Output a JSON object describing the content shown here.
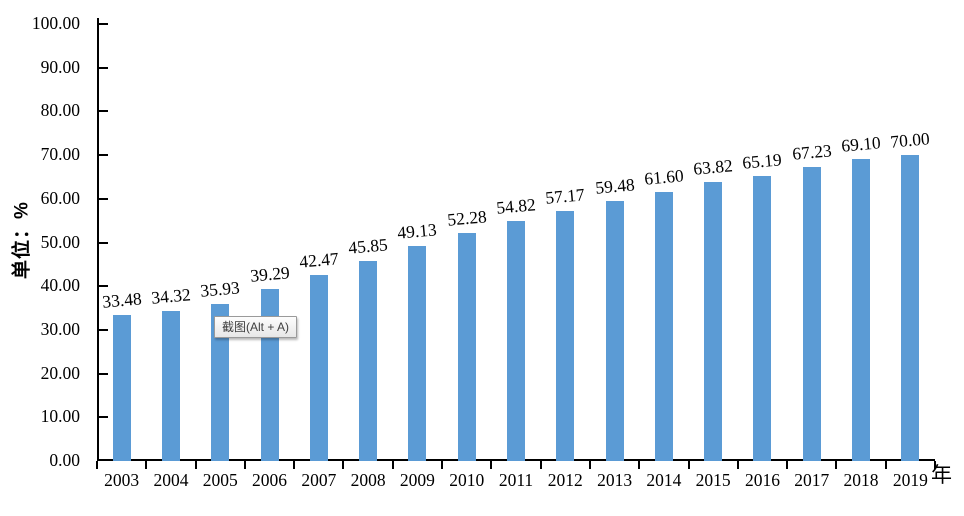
{
  "chart_data": {
    "type": "bar",
    "title": "",
    "categories": [
      "2003",
      "2004",
      "2005",
      "2006",
      "2007",
      "2008",
      "2009",
      "2010",
      "2011",
      "2012",
      "2013",
      "2014",
      "2015",
      "2016",
      "2017",
      "2018",
      "2019"
    ],
    "values": [
      33.48,
      34.32,
      35.93,
      39.29,
      42.47,
      45.85,
      49.13,
      52.28,
      54.82,
      57.17,
      59.48,
      61.6,
      63.82,
      65.19,
      67.23,
      69.1,
      70.0
    ],
    "value_labels": [
      "33.48",
      "34.32",
      "35.93",
      "39.29",
      "42.47",
      "45.85",
      "49.13",
      "52.28",
      "54.82",
      "57.17",
      "59.48",
      "61.60",
      "63.82",
      "65.19",
      "67.23",
      "69.10",
      "70.00"
    ],
    "xlabel": "年",
    "ylabel": "单位：%",
    "ylim": [
      0,
      100
    ],
    "y_tick_interval": 10,
    "y_ticks": [
      "100.00",
      "90.00",
      "80.00",
      "70.00",
      "60.00",
      "50.00",
      "40.00",
      "30.00",
      "20.00",
      "10.00",
      "0.00"
    ],
    "grid": false,
    "legend": "none",
    "bar_color": "#5B9BD5",
    "axis_color": "#000000"
  },
  "tooltip": {
    "label": "截图(Alt + A)"
  }
}
